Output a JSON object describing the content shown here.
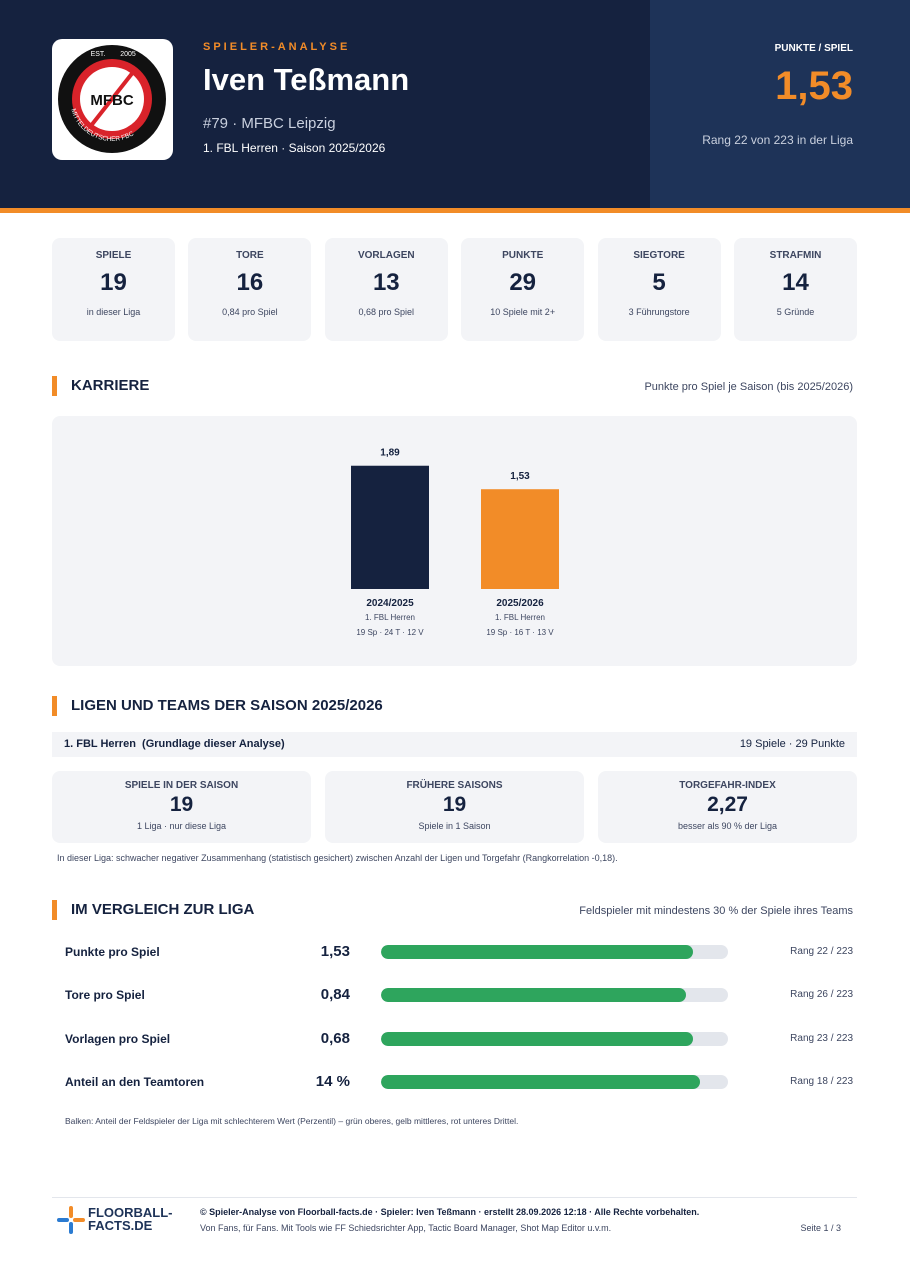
{
  "header": {
    "kicker": "SPIELER-ANALYSE",
    "name": "Iven Teßmann",
    "meta": "#79 · MFBC Leipzig",
    "league": "1. FBL Herren · Saison 2025/2026",
    "logo": {
      "est": "EST.",
      "year": "2005",
      "ring": "MITTELDEUTSCHER FBC",
      "mark": "MFBC"
    },
    "ppg_label": "PUNKTE / SPIEL",
    "ppg": "1,53",
    "rank": "Rang 22 von 223 in der Liga"
  },
  "stats": [
    {
      "label": "SPIELE",
      "value": 19,
      "sub": "in dieser Liga"
    },
    {
      "label": "TORE",
      "value": 16,
      "sub": "0,84 pro Spiel"
    },
    {
      "label": "VORLAGEN",
      "value": 13,
      "sub": "0,68 pro Spiel"
    },
    {
      "label": "PUNKTE",
      "value": 29,
      "sub": "10 Spiele mit 2+"
    },
    {
      "label": "SIEGTORE",
      "value": 5,
      "sub": "3 Führungstore"
    },
    {
      "label": "STRAFMIN",
      "value": 14,
      "sub": "5 Gründe"
    }
  ],
  "career": {
    "title": "KARRIERE",
    "subtitle": "Punkte pro Spiel je Saison (bis 2025/2026)",
    "chart_data": {
      "type": "bar",
      "categories": [
        "2024/2025",
        "2025/2026"
      ],
      "leagues": [
        "1. FBL Herren",
        "1. FBL Herren"
      ],
      "details": [
        "19 Sp · 24 T · 12 V",
        "19 Sp · 16 T · 13 V"
      ],
      "values": [
        1.89,
        1.53
      ],
      "value_labels": [
        "1,89",
        "1,53"
      ],
      "colors": [
        "#15223f",
        "#f28c28"
      ],
      "ylim": [
        0,
        2.3
      ]
    }
  },
  "leagues": {
    "title": "LIGEN UND TEAMS DER SAISON 2025/2026",
    "row_left": "1. FBL Herren  (Grundlage dieser Analyse)",
    "row_right": "19 Spiele · 29 Punkte",
    "cards": [
      {
        "label": "SPIELE IN DER SAISON",
        "value": 19,
        "sub": "1 Liga · nur diese Liga"
      },
      {
        "label": "FRÜHERE SAISONS",
        "value": 19,
        "sub": "Spiele in 1 Saison"
      },
      {
        "label": "TORGEFAHR-INDEX",
        "value": "2,27",
        "sub": "besser als 90 % der Liga"
      }
    ],
    "note": "In dieser Liga: schwacher negativer Zusammenhang (statistisch gesichert) zwischen Anzahl der Ligen und Torgefahr (Rangkorrelation -0,18)."
  },
  "comparison": {
    "title": "IM VERGLEICH ZUR LIGA",
    "subtitle": "Feldspieler mit mindestens 30 % der Spiele ihres Teams",
    "xlim": [
      0,
      100
    ],
    "color": "#2ea55d",
    "rows": [
      {
        "label": "Punkte pro Spiel",
        "value": "1,53",
        "percentile": 90,
        "rank": "Rang 22 / 223"
      },
      {
        "label": "Tore pro Spiel",
        "value": "0,84",
        "percentile": 88,
        "rank": "Rang 26 / 223"
      },
      {
        "label": "Vorlagen pro Spiel",
        "value": "0,68",
        "percentile": 90,
        "rank": "Rang 23 / 223"
      },
      {
        "label": "Anteil an den Teamtoren",
        "value": "14 %",
        "percentile": 92,
        "rank": "Rang 18 / 223"
      }
    ],
    "note": "Balken: Anteil der Feldspieler der Liga mit schlechterem Wert (Perzentil) – grün oberes, gelb mittleres, rot unteres Drittel."
  },
  "footer": {
    "brand1": "FLOORBALL-",
    "brand2": "FACTS.DE",
    "line1": "© Spieler-Analyse von Floorball-facts.de · Spieler: Iven Teßmann · erstellt 28.09.2026 12:18 · Alle Rechte vorbehalten.",
    "line2": "Von Fans, für Fans. Mit Tools wie FF Schiedsrichter App, Tactic Board Manager, Shot Map Editor u.v.m.",
    "page": "Seite 1 / 3"
  }
}
